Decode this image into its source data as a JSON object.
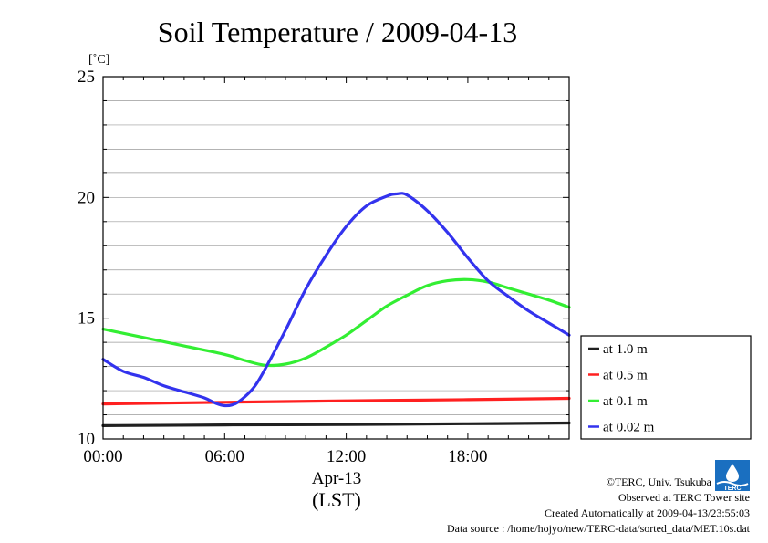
{
  "chart_data": {
    "type": "line",
    "title": "Soil Temperature / 2009-04-13",
    "ylabel": "[˚C]",
    "ylim": [
      10,
      25
    ],
    "yticks": [
      "10",
      "15",
      "20",
      "25"
    ],
    "xlim": [
      0,
      23
    ],
    "xticks": [
      {
        "at": 0,
        "label": "00:00"
      },
      {
        "at": 6,
        "label": "06:00"
      },
      {
        "at": 12,
        "label": "12:00"
      },
      {
        "at": 18,
        "label": "18:00"
      }
    ],
    "xdate": "Apr-13",
    "xunit": "(LST)",
    "grid": true,
    "legend_position": "right",
    "series": [
      {
        "name": "at 1.0 m",
        "color": "#202020",
        "x": [
          0,
          6,
          12,
          18,
          23
        ],
        "y": [
          10.55,
          10.58,
          10.6,
          10.63,
          10.66
        ]
      },
      {
        "name": "at 0.5 m",
        "color": "#ff2020",
        "x": [
          0,
          6,
          12,
          18,
          23
        ],
        "y": [
          11.45,
          11.52,
          11.58,
          11.63,
          11.68
        ]
      },
      {
        "name": "at 0.1 m",
        "color": "#33ee33",
        "x": [
          0,
          2,
          4,
          6,
          7,
          8,
          9,
          10,
          11,
          12,
          13,
          14,
          15,
          16,
          17,
          18,
          19,
          20,
          21,
          22,
          23
        ],
        "y": [
          14.55,
          14.2,
          13.85,
          13.5,
          13.25,
          13.05,
          13.1,
          13.35,
          13.8,
          14.3,
          14.9,
          15.5,
          15.95,
          16.35,
          16.55,
          16.6,
          16.5,
          16.25,
          16.0,
          15.75,
          15.45
        ]
      },
      {
        "name": "at 0.02 m",
        "color": "#3333ee",
        "x": [
          0,
          1,
          2,
          3,
          4,
          5,
          5.5,
          6,
          6.5,
          7,
          7.5,
          8,
          9,
          10,
          11,
          12,
          13,
          14,
          14.5,
          15,
          16,
          17,
          18,
          19,
          20,
          21,
          22,
          23
        ],
        "y": [
          13.3,
          12.8,
          12.55,
          12.2,
          11.95,
          11.7,
          11.5,
          11.38,
          11.45,
          11.75,
          12.2,
          12.9,
          14.5,
          16.2,
          17.6,
          18.8,
          19.65,
          20.05,
          20.15,
          20.1,
          19.45,
          18.55,
          17.5,
          16.55,
          15.9,
          15.3,
          14.8,
          14.3
        ]
      }
    ]
  },
  "footer": {
    "copyright": "©TERC, Univ. Tsukuba",
    "observed": "Observed at TERC Tower site",
    "created": "Created Automatically at 2009-04-13/23:55:03",
    "source": "Data source : /home/hojyo/new/TERC-data/sorted_data/MET.10s.dat",
    "logo_text": "TERC"
  }
}
